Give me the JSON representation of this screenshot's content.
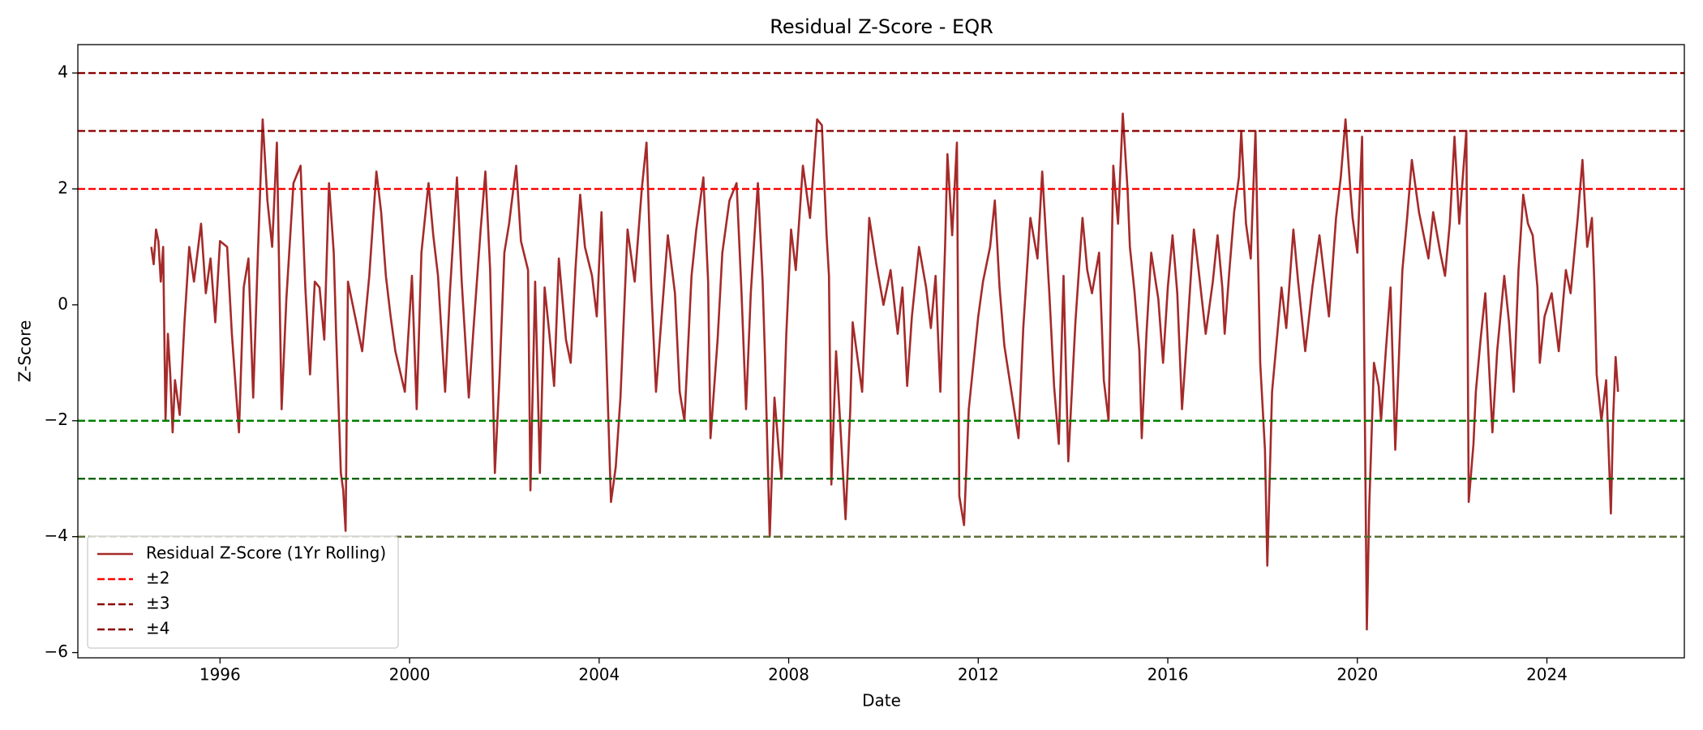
{
  "chart_data": {
    "type": "line",
    "title": "Residual Z-Score - EQR",
    "xlabel": "Date",
    "ylabel": "Z-Score",
    "xlim": [
      1993.0,
      2026.9
    ],
    "xticks": [
      1996,
      2000,
      2004,
      2008,
      2012,
      2016,
      2020,
      2024
    ],
    "ylim": [
      -6.09,
      4.49
    ],
    "yticks": [
      {
        "value": -6,
        "label": "−6"
      },
      {
        "value": -4,
        "label": "−4"
      },
      {
        "value": -2,
        "label": "−2"
      },
      0,
      2,
      4
    ],
    "grid": false,
    "legend": "lower left",
    "series": [
      {
        "name": "Residual Z-Score (1Yr Rolling)",
        "color": "#a52a2a",
        "x": [
          1994.55,
          1994.6,
          1994.65,
          1994.7,
          1994.75,
          1994.8,
          1994.85,
          1994.9,
          1994.95,
          1995.0,
          1995.05,
          1995.15,
          1995.25,
          1995.35,
          1995.45,
          1995.6,
          1995.7,
          1995.8,
          1995.9,
          1996.0,
          1996.15,
          1996.25,
          1996.4,
          1996.5,
          1996.6,
          1996.7,
          1996.8,
          1996.9,
          1997.0,
          1997.1,
          1997.2,
          1997.3,
          1997.4,
          1997.55,
          1997.7,
          1997.8,
          1997.9,
          1998.0,
          1998.1,
          1998.2,
          1998.3,
          1998.4,
          1998.45,
          1998.55,
          1998.6,
          1998.65,
          1998.7,
          1998.85,
          1999.0,
          1999.15,
          1999.3,
          1999.4,
          1999.5,
          1999.6,
          1999.7,
          1999.9,
          2000.05,
          2000.15,
          2000.25,
          2000.4,
          2000.5,
          2000.6,
          2000.75,
          2000.85,
          2001.0,
          2001.1,
          2001.25,
          2001.35,
          2001.5,
          2001.6,
          2001.7,
          2001.8,
          2001.9,
          2002.0,
          2002.1,
          2002.25,
          2002.35,
          2002.5,
          2002.55,
          2002.65,
          2002.75,
          2002.85,
          2002.95,
          2003.05,
          2003.15,
          2003.3,
          2003.4,
          2003.5,
          2003.6,
          2003.7,
          2003.85,
          2003.95,
          2004.05,
          2004.15,
          2004.25,
          2004.35,
          2004.45,
          2004.6,
          2004.75,
          2004.9,
          2005.0,
          2005.1,
          2005.2,
          2005.3,
          2005.45,
          2005.6,
          2005.7,
          2005.8,
          2005.95,
          2006.05,
          2006.2,
          2006.3,
          2006.35,
          2006.5,
          2006.6,
          2006.75,
          2006.9,
          2007.0,
          2007.1,
          2007.2,
          2007.35,
          2007.45,
          2007.5,
          2007.6,
          2007.7,
          2007.8,
          2007.85,
          2007.95,
          2008.05,
          2008.15,
          2008.3,
          2008.45,
          2008.6,
          2008.7,
          2008.8,
          2008.85,
          2008.9,
          2009.0,
          2009.05,
          2009.2,
          2009.3,
          2009.35,
          2009.45,
          2009.55,
          2009.7,
          2009.85,
          2010.0,
          2010.15,
          2010.3,
          2010.4,
          2010.5,
          2010.6,
          2010.75,
          2010.9,
          2011.0,
          2011.1,
          2011.2,
          2011.3,
          2011.35,
          2011.45,
          2011.55,
          2011.6,
          2011.7,
          2011.8,
          2011.9,
          2012.0,
          2012.1,
          2012.25,
          2012.35,
          2012.45,
          2012.55,
          2012.7,
          2012.85,
          2012.95,
          2013.1,
          2013.25,
          2013.35,
          2013.5,
          2013.6,
          2013.7,
          2013.8,
          2013.9,
          2014.05,
          2014.2,
          2014.3,
          2014.4,
          2014.55,
          2014.65,
          2014.75,
          2014.85,
          2014.95,
          2015.05,
          2015.15,
          2015.2,
          2015.3,
          2015.4,
          2015.45,
          2015.55,
          2015.65,
          2015.8,
          2015.9,
          2016.0,
          2016.1,
          2016.2,
          2016.3,
          2016.4,
          2016.55,
          2016.65,
          2016.8,
          2016.95,
          2017.05,
          2017.15,
          2017.2,
          2017.3,
          2017.4,
          2017.5,
          2017.55,
          2017.65,
          2017.75,
          2017.85,
          2017.95,
          2018.05,
          2018.1,
          2018.2,
          2018.3,
          2018.4,
          2018.5,
          2018.65,
          2018.75,
          2018.9,
          2019.05,
          2019.2,
          2019.3,
          2019.4,
          2019.55,
          2019.65,
          2019.75,
          2019.85,
          2019.9,
          2020.0,
          2020.1,
          2020.15,
          2020.2,
          2020.25,
          2020.35,
          2020.45,
          2020.5,
          2020.6,
          2020.7,
          2020.8,
          2020.95,
          2021.05,
          2021.15,
          2021.3,
          2021.4,
          2021.5,
          2021.6,
          2021.75,
          2021.85,
          2021.95,
          2022.05,
          2022.15,
          2022.3,
          2022.35,
          2022.45,
          2022.5,
          2022.6,
          2022.7,
          2022.85,
          2022.95,
          2023.1,
          2023.2,
          2023.3,
          2023.4,
          2023.5,
          2023.6,
          2023.7,
          2023.8,
          2023.85,
          2023.95,
          2024.1,
          2024.25,
          2024.4,
          2024.5,
          2024.65,
          2024.75,
          2024.85,
          2024.95,
          2025.0,
          2025.05,
          2025.15,
          2025.25,
          2025.35,
          2025.4,
          2025.45,
          2025.5
        ],
        "values": [
          1.0,
          0.7,
          1.3,
          1.1,
          0.4,
          1.0,
          -2.0,
          -0.5,
          -1.2,
          -2.2,
          -1.3,
          -1.9,
          -0.3,
          1.0,
          0.4,
          1.4,
          0.2,
          0.8,
          -0.3,
          1.1,
          1.0,
          -0.5,
          -2.2,
          0.3,
          0.8,
          -1.6,
          0.9,
          3.2,
          1.8,
          1.0,
          2.8,
          -1.8,
          0.1,
          2.1,
          2.4,
          0.3,
          -1.2,
          0.4,
          0.3,
          -0.6,
          2.1,
          0.9,
          -0.5,
          -2.9,
          -3.2,
          -3.9,
          0.4,
          -0.2,
          -0.8,
          0.5,
          2.3,
          1.6,
          0.5,
          -0.2,
          -0.8,
          -1.5,
          0.5,
          -1.8,
          0.9,
          2.1,
          1.2,
          0.5,
          -1.5,
          0.2,
          2.2,
          0.4,
          -1.6,
          -0.4,
          1.3,
          2.3,
          0.6,
          -2.9,
          -1.2,
          0.9,
          1.4,
          2.4,
          1.1,
          0.6,
          -3.2,
          0.4,
          -2.9,
          0.3,
          -0.5,
          -1.4,
          0.8,
          -0.6,
          -1.0,
          0.6,
          1.9,
          1.0,
          0.5,
          -0.2,
          1.6,
          -0.8,
          -3.4,
          -2.8,
          -1.6,
          1.3,
          0.4,
          2.0,
          2.8,
          0.3,
          -1.5,
          -0.4,
          1.2,
          0.2,
          -1.5,
          -2.0,
          0.5,
          1.3,
          2.2,
          0.4,
          -2.3,
          -0.6,
          0.9,
          1.8,
          2.1,
          0.3,
          -1.8,
          0.2,
          2.1,
          0.4,
          -0.9,
          -4.0,
          -1.6,
          -2.6,
          -3.0,
          -0.5,
          1.3,
          0.6,
          2.4,
          1.5,
          3.2,
          3.1,
          1.2,
          0.5,
          -3.1,
          -0.8,
          -1.5,
          -3.7,
          -1.8,
          -0.3,
          -0.9,
          -1.5,
          1.5,
          0.7,
          0.0,
          0.6,
          -0.5,
          0.3,
          -1.4,
          -0.2,
          1.0,
          0.3,
          -0.4,
          0.5,
          -1.5,
          1.0,
          2.6,
          1.2,
          2.8,
          -3.3,
          -3.8,
          -1.8,
          -1.0,
          -0.2,
          0.4,
          1.0,
          1.8,
          0.3,
          -0.7,
          -1.5,
          -2.3,
          -0.4,
          1.5,
          0.8,
          2.3,
          0.2,
          -1.4,
          -2.4,
          0.5,
          -2.7,
          -0.3,
          1.5,
          0.6,
          0.2,
          0.9,
          -1.3,
          -2.0,
          2.4,
          1.4,
          3.3,
          2.0,
          1.0,
          0.2,
          -0.8,
          -2.3,
          -0.5,
          0.9,
          0.1,
          -1.0,
          0.3,
          1.2,
          0.2,
          -1.8,
          -0.6,
          1.3,
          0.6,
          -0.5,
          0.4,
          1.2,
          0.3,
          -0.5,
          0.6,
          1.6,
          2.2,
          3.0,
          1.4,
          0.8,
          3.0,
          -1.0,
          -2.5,
          -4.5,
          -1.5,
          -0.6,
          0.3,
          -0.4,
          1.3,
          0.4,
          -0.8,
          0.3,
          1.2,
          0.5,
          -0.2,
          1.5,
          2.2,
          3.2,
          2.0,
          1.5,
          0.9,
          2.9,
          -1.2,
          -5.6,
          -3.5,
          -1.0,
          -1.4,
          -2.0,
          -0.8,
          0.3,
          -2.5,
          0.6,
          1.5,
          2.5,
          1.6,
          1.2,
          0.8,
          1.6,
          0.9,
          0.5,
          1.4,
          2.9,
          1.4,
          3.0,
          -3.4,
          -2.4,
          -1.5,
          -0.6,
          0.2,
          -2.2,
          -0.8,
          0.5,
          -0.3,
          -1.5,
          0.6,
          1.9,
          1.4,
          1.2,
          0.3,
          -1.0,
          -0.2,
          0.2,
          -0.8,
          0.6,
          0.2,
          1.5,
          2.5,
          1.0,
          1.5,
          0.4,
          -1.2,
          -2.0,
          -1.3,
          -3.6,
          -1.9,
          -0.9,
          -1.5
        ]
      }
    ],
    "hlines": [
      {
        "name": "±2",
        "value": 2,
        "color": "#ff0000"
      },
      {
        "value": -2,
        "color": "#008000"
      },
      {
        "name": "±3",
        "value": 3,
        "color": "#8b0000"
      },
      {
        "value": -3,
        "color": "#006400"
      },
      {
        "name": "±4",
        "value": 4,
        "color": "#8b0000"
      },
      {
        "value": -4,
        "color": "#556b2f"
      }
    ]
  }
}
